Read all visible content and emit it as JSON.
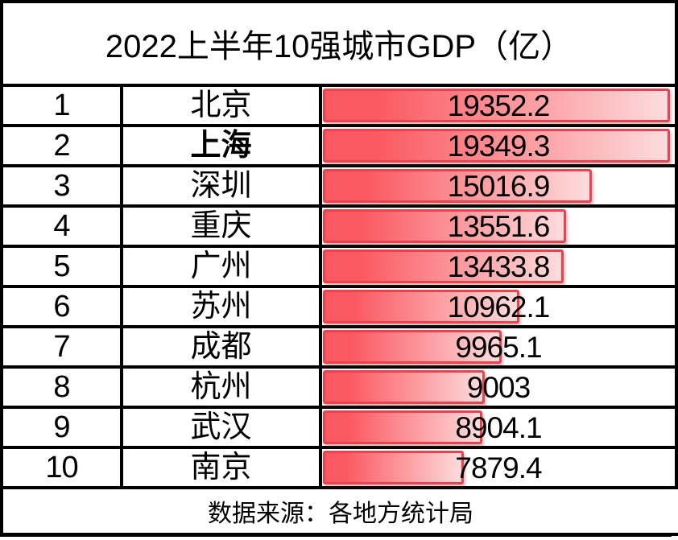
{
  "title": "2022上半年10强城市GDP（亿）",
  "footer": {
    "text": "数据来源：各地方统计局"
  },
  "colors": {
    "background": "#ffffff",
    "grid_line": "#000000",
    "text": "#000000",
    "bar_fill_start": "#fb5961",
    "bar_fill_end": "#fcdcdd",
    "bar_border": "#e9444d"
  },
  "chart_data": {
    "type": "bar",
    "orientation": "horizontal",
    "title": "2022上半年10强城市GDP（亿）",
    "ranks": [
      1,
      2,
      3,
      4,
      5,
      6,
      7,
      8,
      9,
      10
    ],
    "categories": [
      "北京",
      "上海",
      "深圳",
      "重庆",
      "广州",
      "苏州",
      "成都",
      "杭州",
      "武汉",
      "南京"
    ],
    "values": [
      19352.2,
      19349.3,
      15016.9,
      13551.6,
      13433.8,
      10962.1,
      9965.1,
      9003,
      8904.1,
      7879.4
    ],
    "value_labels": [
      "19352.2",
      "19349.3",
      "15016.9",
      "13551.6",
      "13433.8",
      "10962.1",
      "9965.1",
      "9003",
      "8904.1",
      "7879.4"
    ],
    "bold_categories": [
      "上海"
    ],
    "xlim": [
      0,
      19352.2
    ],
    "grid": false,
    "legend": "none",
    "source_note": "数据来源：各地方统计局",
    "unit": "亿元"
  }
}
